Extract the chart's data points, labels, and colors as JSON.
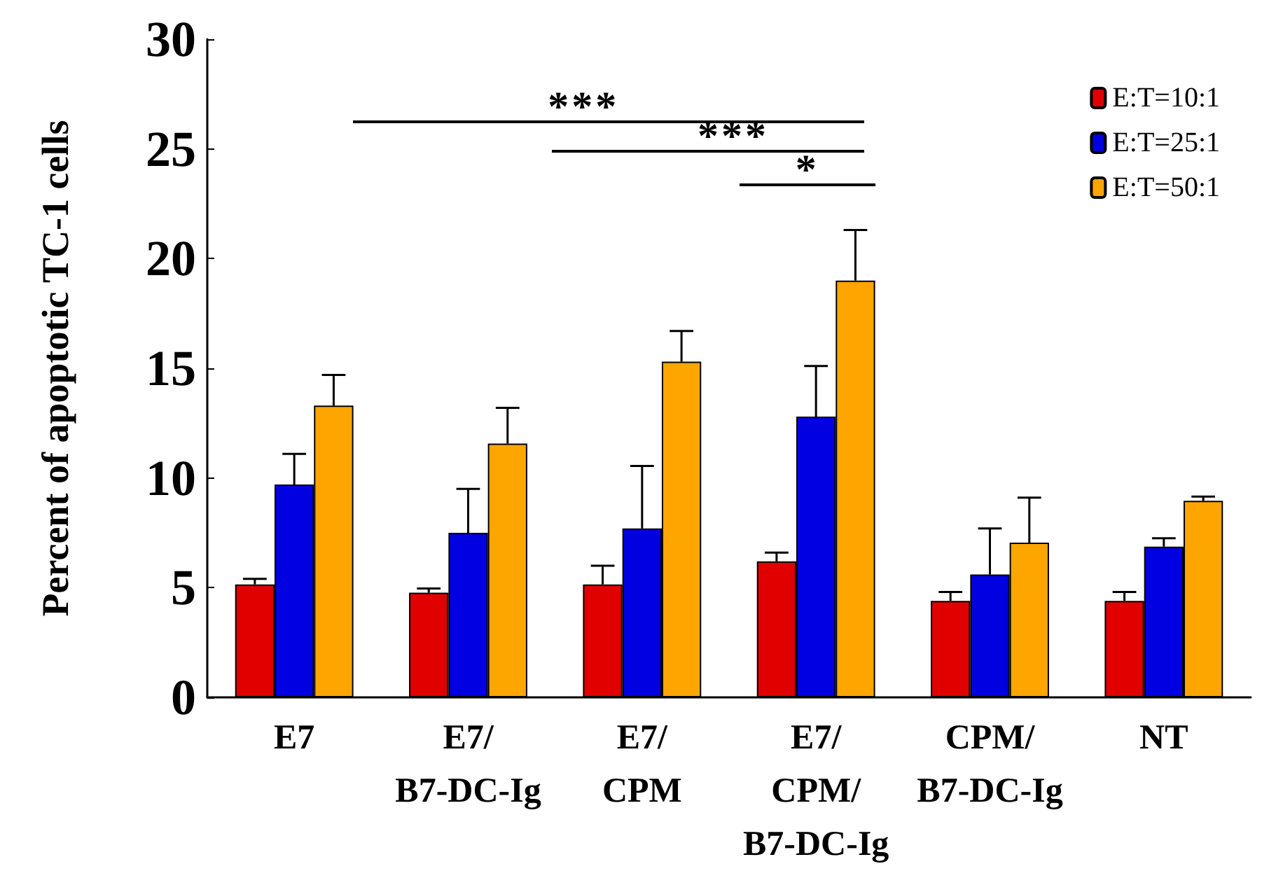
{
  "chart_data": {
    "type": "bar",
    "ylabel": "Percent of apoptotic TC-1 cells",
    "categories": [
      "E7",
      "E7/\nB7-DC-Ig",
      "E7/\nCPM",
      "E7/\nCPM/\nB7-DC-Ig",
      "CPM/\nB7-DC-Ig",
      "NT"
    ],
    "series": [
      {
        "name": "E:T=10:1",
        "color": "#e00000",
        "values": [
          5.15,
          4.77,
          5.15,
          6.2,
          4.4,
          4.4
        ],
        "errors": [
          [
            5.15,
            5.4
          ],
          [
            4.77,
            4.96
          ],
          [
            5.15,
            6.0
          ],
          [
            6.2,
            6.6
          ],
          [
            4.4,
            4.8
          ],
          [
            4.4,
            4.8
          ]
        ]
      },
      {
        "name": "E:T=25:1",
        "color": "#0000e0",
        "values": [
          9.7,
          7.5,
          7.7,
          12.8,
          5.6,
          6.87
        ],
        "errors": [
          [
            9.7,
            11.1
          ],
          [
            7.5,
            9.5
          ],
          [
            7.7,
            10.55
          ],
          [
            12.8,
            15.1
          ],
          [
            5.6,
            7.7
          ],
          [
            6.87,
            7.25
          ]
        ]
      },
      {
        "name": "E:T=50:1",
        "color": "#ffa500",
        "values": [
          13.3,
          11.57,
          15.3,
          19.0,
          7.05,
          8.96
        ],
        "errors": [
          [
            13.3,
            14.7
          ],
          [
            11.57,
            13.2
          ],
          [
            15.3,
            16.7
          ],
          [
            19.0,
            21.3
          ],
          [
            7.05,
            9.1
          ],
          [
            8.96,
            9.15
          ]
        ]
      }
    ],
    "ylim": [
      0,
      30
    ],
    "yticks": [
      0,
      5,
      10,
      15,
      20,
      25,
      30
    ],
    "grid": false,
    "legend": "top right",
    "annotations": [
      "***",
      "***",
      "*"
    ]
  }
}
